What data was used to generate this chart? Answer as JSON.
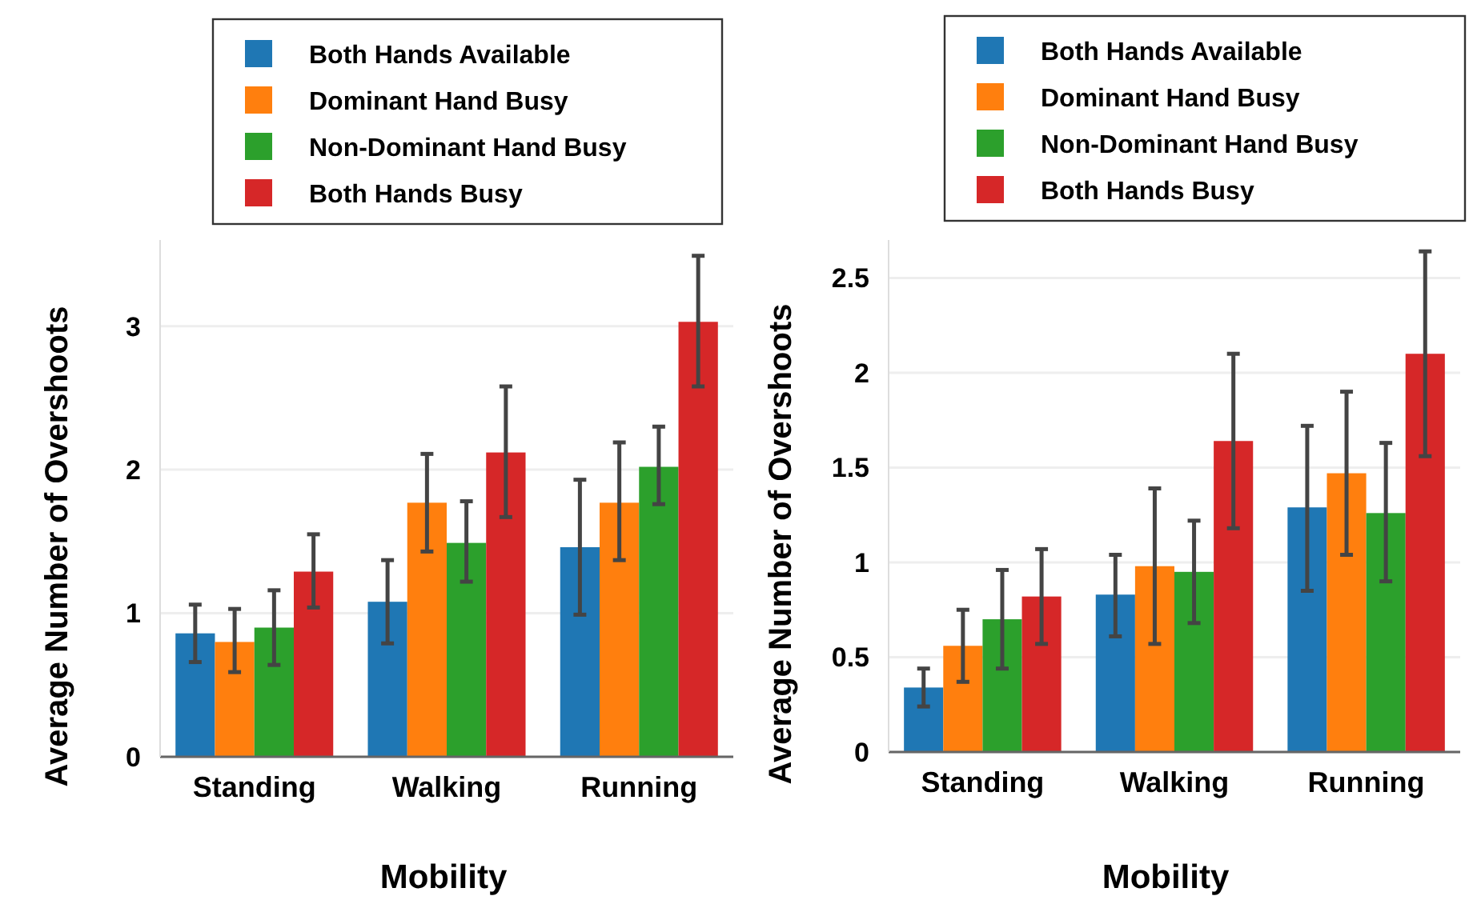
{
  "chart_data": [
    {
      "type": "bar",
      "xlabel": "Mobility",
      "ylabel": "Average Number of Overshoots",
      "categories": [
        "Standing",
        "Walking",
        "Running"
      ],
      "ylim": [
        0,
        3.6
      ],
      "yticks": [
        0,
        1,
        2,
        3
      ],
      "grid": "y",
      "legend": "top",
      "series": [
        {
          "name": "Both Hands Available",
          "color": "#1f77b4",
          "values": [
            0.86,
            1.08,
            1.46
          ],
          "errors": [
            [
              0.66,
              1.06
            ],
            [
              0.79,
              1.37
            ],
            [
              0.99,
              1.93
            ]
          ]
        },
        {
          "name": "Dominant Hand Busy",
          "color": "#ff7f0e",
          "values": [
            0.8,
            1.77,
            1.77
          ],
          "errors": [
            [
              0.59,
              1.03
            ],
            [
              1.43,
              2.11
            ],
            [
              1.37,
              2.19
            ]
          ]
        },
        {
          "name": "Non-Dominant Hand Busy",
          "color": "#2ca02c",
          "values": [
            0.9,
            1.49,
            2.02
          ],
          "errors": [
            [
              0.64,
              1.16
            ],
            [
              1.22,
              1.78
            ],
            [
              1.76,
              2.3
            ]
          ]
        },
        {
          "name": "Both Hands Busy",
          "color": "#d62728",
          "values": [
            1.29,
            2.12,
            3.03
          ],
          "errors": [
            [
              1.04,
              1.55
            ],
            [
              1.67,
              2.58
            ],
            [
              2.58,
              3.49
            ]
          ]
        }
      ]
    },
    {
      "type": "bar",
      "xlabel": "Mobility",
      "ylabel": "Average Number of Overshoots",
      "categories": [
        "Standing",
        "Walking",
        "Running"
      ],
      "ylim": [
        0,
        2.7
      ],
      "yticks": [
        0,
        0.5,
        1,
        1.5,
        2,
        2.5
      ],
      "grid": "y",
      "legend": "top",
      "series": [
        {
          "name": "Both Hands Available",
          "color": "#1f77b4",
          "values": [
            0.34,
            0.83,
            1.29
          ],
          "errors": [
            [
              0.24,
              0.44
            ],
            [
              0.61,
              1.04
            ],
            [
              0.85,
              1.72
            ]
          ]
        },
        {
          "name": "Dominant Hand Busy",
          "color": "#ff7f0e",
          "values": [
            0.56,
            0.98,
            1.47
          ],
          "errors": [
            [
              0.37,
              0.75
            ],
            [
              0.57,
              1.39
            ],
            [
              1.04,
              1.9
            ]
          ]
        },
        {
          "name": "Non-Dominant Hand Busy",
          "color": "#2ca02c",
          "values": [
            0.7,
            0.95,
            1.26
          ],
          "errors": [
            [
              0.44,
              0.96
            ],
            [
              0.68,
              1.22
            ],
            [
              0.9,
              1.63
            ]
          ]
        },
        {
          "name": "Both Hands Busy",
          "color": "#d62728",
          "values": [
            0.82,
            1.64,
            2.1
          ],
          "errors": [
            [
              0.57,
              1.07
            ],
            [
              1.18,
              2.1
            ],
            [
              1.56,
              2.64
            ]
          ]
        }
      ]
    }
  ]
}
